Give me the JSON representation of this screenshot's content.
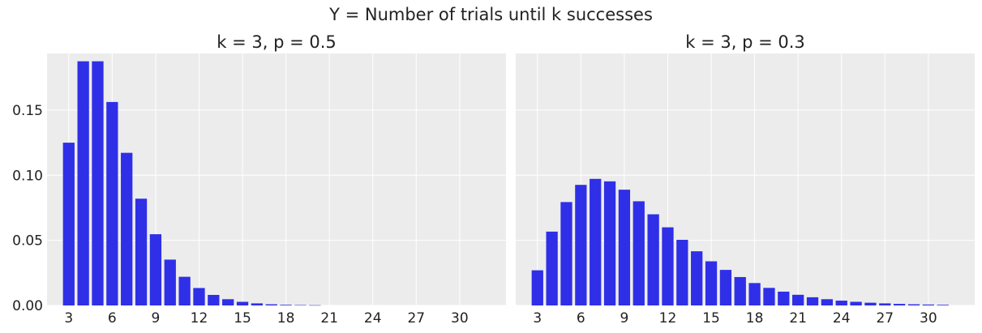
{
  "suptitle": "Y = Number of trials until k successes",
  "colors": {
    "bar": "#2f2fe8",
    "panel_bg": "#ececec",
    "grid": "#ffffff",
    "text": "#222222"
  },
  "chart_data": [
    {
      "type": "bar",
      "title": "k = 3, p = 0.5",
      "xlabel": "",
      "ylabel": "",
      "grid": true,
      "x": [
        3,
        4,
        5,
        6,
        7,
        8,
        9,
        10,
        11,
        12,
        13,
        14,
        15,
        16,
        17,
        18,
        19,
        20
      ],
      "values": [
        0.125,
        0.1875,
        0.1875,
        0.15625,
        0.1172,
        0.082,
        0.0547,
        0.0352,
        0.022,
        0.0134,
        0.0081,
        0.0048,
        0.0028,
        0.0016,
        0.0009,
        0.0005,
        0.0003,
        0.0002
      ],
      "xticks": [
        3,
        6,
        9,
        12,
        15,
        18,
        21,
        24,
        27,
        30
      ],
      "yticks": [
        0.0,
        0.05,
        0.1,
        0.15
      ],
      "ytick_labels": [
        "0.00",
        "0.05",
        "0.10",
        "0.15"
      ],
      "xlim": [
        1.5,
        33.2
      ],
      "ylim": [
        0,
        0.1935
      ]
    },
    {
      "type": "bar",
      "title": "k = 3, p = 0.3",
      "xlabel": "",
      "ylabel": "",
      "grid": true,
      "x": [
        3,
        4,
        5,
        6,
        7,
        8,
        9,
        10,
        11,
        12,
        13,
        14,
        15,
        16,
        17,
        18,
        19,
        20,
        21,
        22,
        23,
        24,
        25,
        26,
        27,
        28,
        29,
        30,
        31
      ],
      "values": [
        0.027,
        0.0567,
        0.0794,
        0.0926,
        0.0972,
        0.0953,
        0.0889,
        0.08,
        0.07,
        0.06,
        0.0504,
        0.0416,
        0.0339,
        0.0273,
        0.0218,
        0.0172,
        0.0135,
        0.0106,
        0.0082,
        0.0063,
        0.0048,
        0.0037,
        0.0028,
        0.0021,
        0.0016,
        0.0012,
        0.0009,
        0.0007,
        0.0005
      ],
      "xticks": [
        3,
        6,
        9,
        12,
        15,
        18,
        21,
        24,
        27,
        30
      ],
      "xlim": [
        1.5,
        33.2
      ],
      "ylim": [
        0,
        0.1935
      ]
    }
  ]
}
